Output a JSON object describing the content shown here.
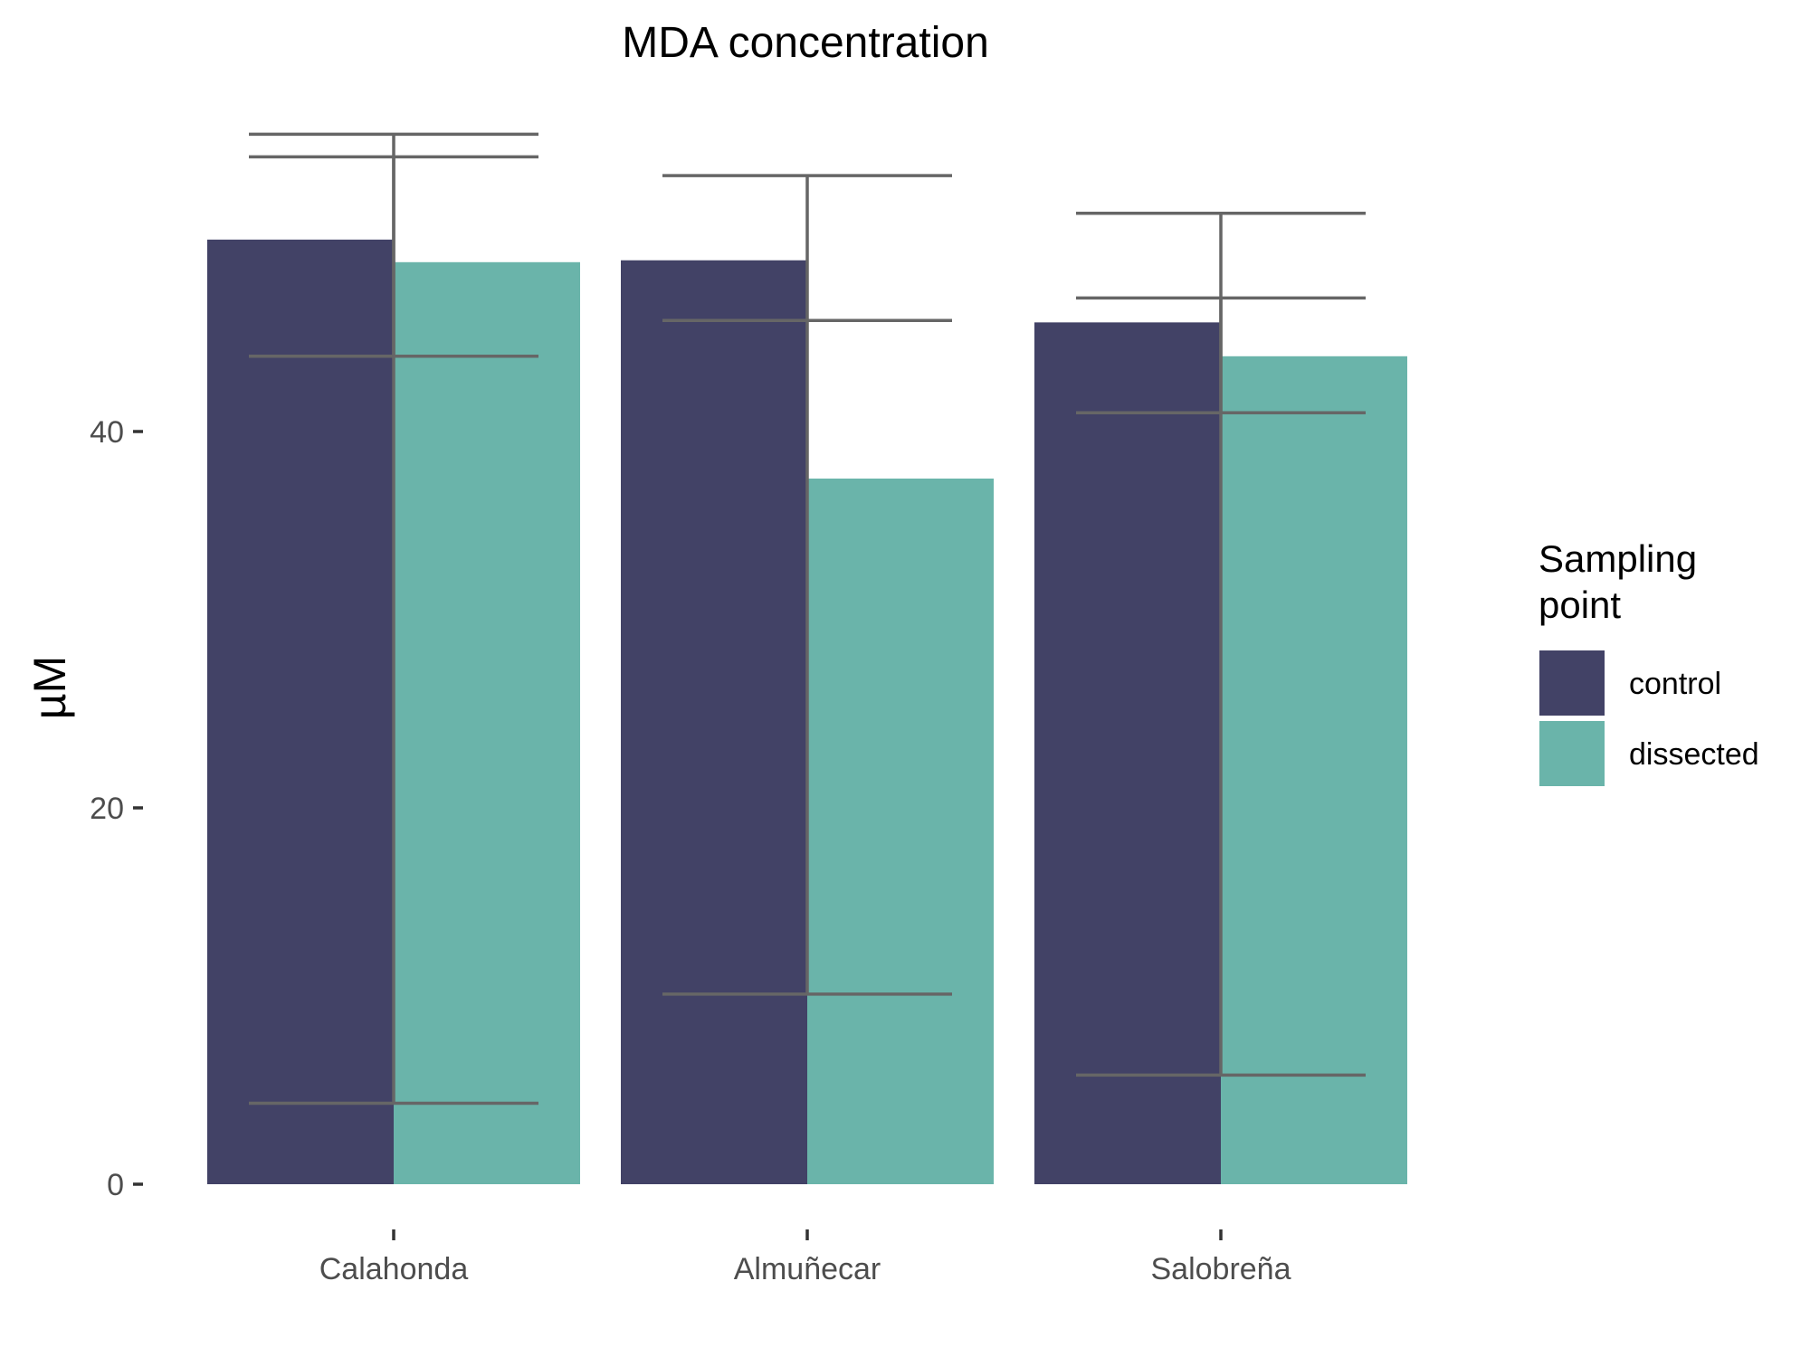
{
  "chart_data": {
    "type": "bar",
    "title": "MDA concentration",
    "xlabel": "",
    "ylabel": "µM",
    "categories": [
      "Calahonda",
      "Almuñecar",
      "Salobreña"
    ],
    "ylim": [
      0,
      56
    ],
    "y_ticks": [
      "0",
      "20",
      "40"
    ],
    "series": [
      {
        "name": "control",
        "color": "#424266",
        "values": [
          50.2,
          49.1,
          45.8
        ],
        "error_lower": [
          4.3,
          10.1,
          5.8
        ],
        "error_upper": [
          55.8,
          53.6,
          51.6
        ]
      },
      {
        "name": "dissected",
        "color": "#6ab4aa",
        "values": [
          49.0,
          37.5,
          44.0
        ],
        "error_lower": [
          54.6,
          45.9,
          47.1
        ],
        "error_upper": [
          44.0,
          45.9,
          41.0
        ]
      }
    ],
    "legend": {
      "title_line1": "Sampling",
      "title_line2": "point",
      "placement": "right"
    },
    "error_bar_color": "#666666",
    "grid": false
  }
}
